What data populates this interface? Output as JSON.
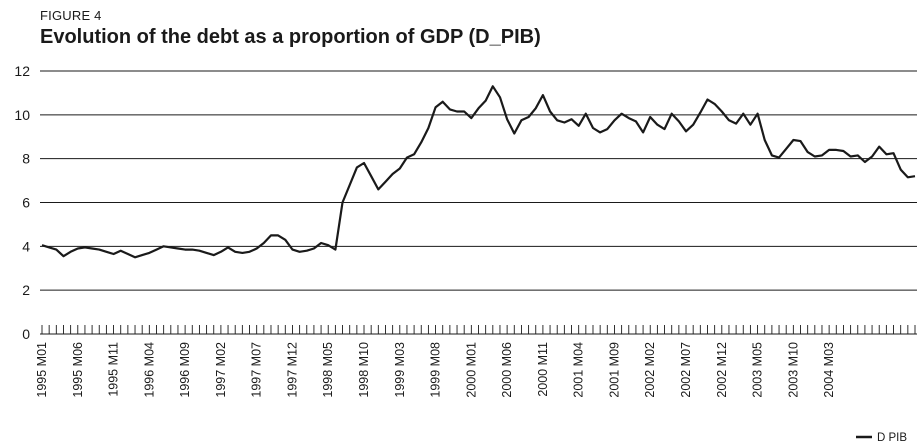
{
  "figure": {
    "label": "FIGURE 4",
    "title": "Evolution of the debt as a proportion of GDP (D_PIB)"
  },
  "chart_data": {
    "type": "line",
    "title": "Evolution of the debt as a proportion of GDP (D_PIB)",
    "xlabel": "",
    "ylabel": "",
    "ylim": [
      0,
      12
    ],
    "yticks": [
      0,
      2,
      4,
      6,
      8,
      10,
      12
    ],
    "grid": "horizontal",
    "legend_position": "bottom-right",
    "line_color": "#1a1a1a",
    "x_start": "1995 M01",
    "x_end": "2004 M03",
    "x_tick_labels": [
      "1995 M01",
      "1995 M06",
      "1995 M11",
      "1996 M04",
      "1996 M09",
      "1997 M02",
      "1997 M07",
      "1997 M12",
      "1998 M05",
      "1998 M10",
      "1999 M03",
      "1999 M08",
      "2000 M01",
      "2000 M06",
      "2000 M11",
      "2001 M04",
      "2001 M09",
      "2002 M02",
      "2002 M07",
      "2002 M12",
      "2003 M05",
      "2003 M10",
      "2004 M03"
    ],
    "series": [
      {
        "name": "D_PIB",
        "legend_label": "D  PIB",
        "values": [
          4.05,
          3.95,
          3.85,
          3.55,
          3.75,
          3.9,
          3.95,
          3.9,
          3.85,
          3.75,
          3.65,
          3.8,
          3.65,
          3.5,
          3.6,
          3.7,
          3.85,
          4.0,
          3.95,
          3.9,
          3.85,
          3.85,
          3.8,
          3.7,
          3.6,
          3.75,
          3.95,
          3.75,
          3.7,
          3.75,
          3.9,
          4.15,
          4.5,
          4.5,
          4.3,
          3.85,
          3.75,
          3.8,
          3.9,
          4.15,
          4.05,
          3.85,
          6.0,
          6.8,
          7.6,
          7.8,
          7.2,
          6.6,
          6.95,
          7.3,
          7.55,
          8.05,
          8.2,
          8.75,
          9.4,
          10.35,
          10.6,
          10.25,
          10.15,
          10.15,
          9.85,
          10.3,
          10.65,
          11.3,
          10.8,
          9.8,
          9.15,
          9.75,
          9.9,
          10.3,
          10.9,
          10.15,
          9.75,
          9.65,
          9.8,
          9.5,
          10.05,
          9.4,
          9.2,
          9.35,
          9.75,
          10.05,
          9.85,
          9.7,
          9.2,
          9.9,
          9.55,
          9.35,
          10.05,
          9.7,
          9.25,
          9.55,
          10.1,
          10.7,
          10.5,
          10.15,
          9.75,
          9.6,
          10.05,
          9.55,
          10.05,
          8.85,
          8.15,
          8.05,
          8.45,
          8.85,
          8.8,
          8.3,
          8.1,
          8.15,
          8.4,
          8.4,
          8.35,
          8.1,
          8.15,
          7.85,
          8.1,
          8.55,
          8.2,
          8.25,
          7.5,
          7.15,
          7.2
        ]
      }
    ]
  }
}
